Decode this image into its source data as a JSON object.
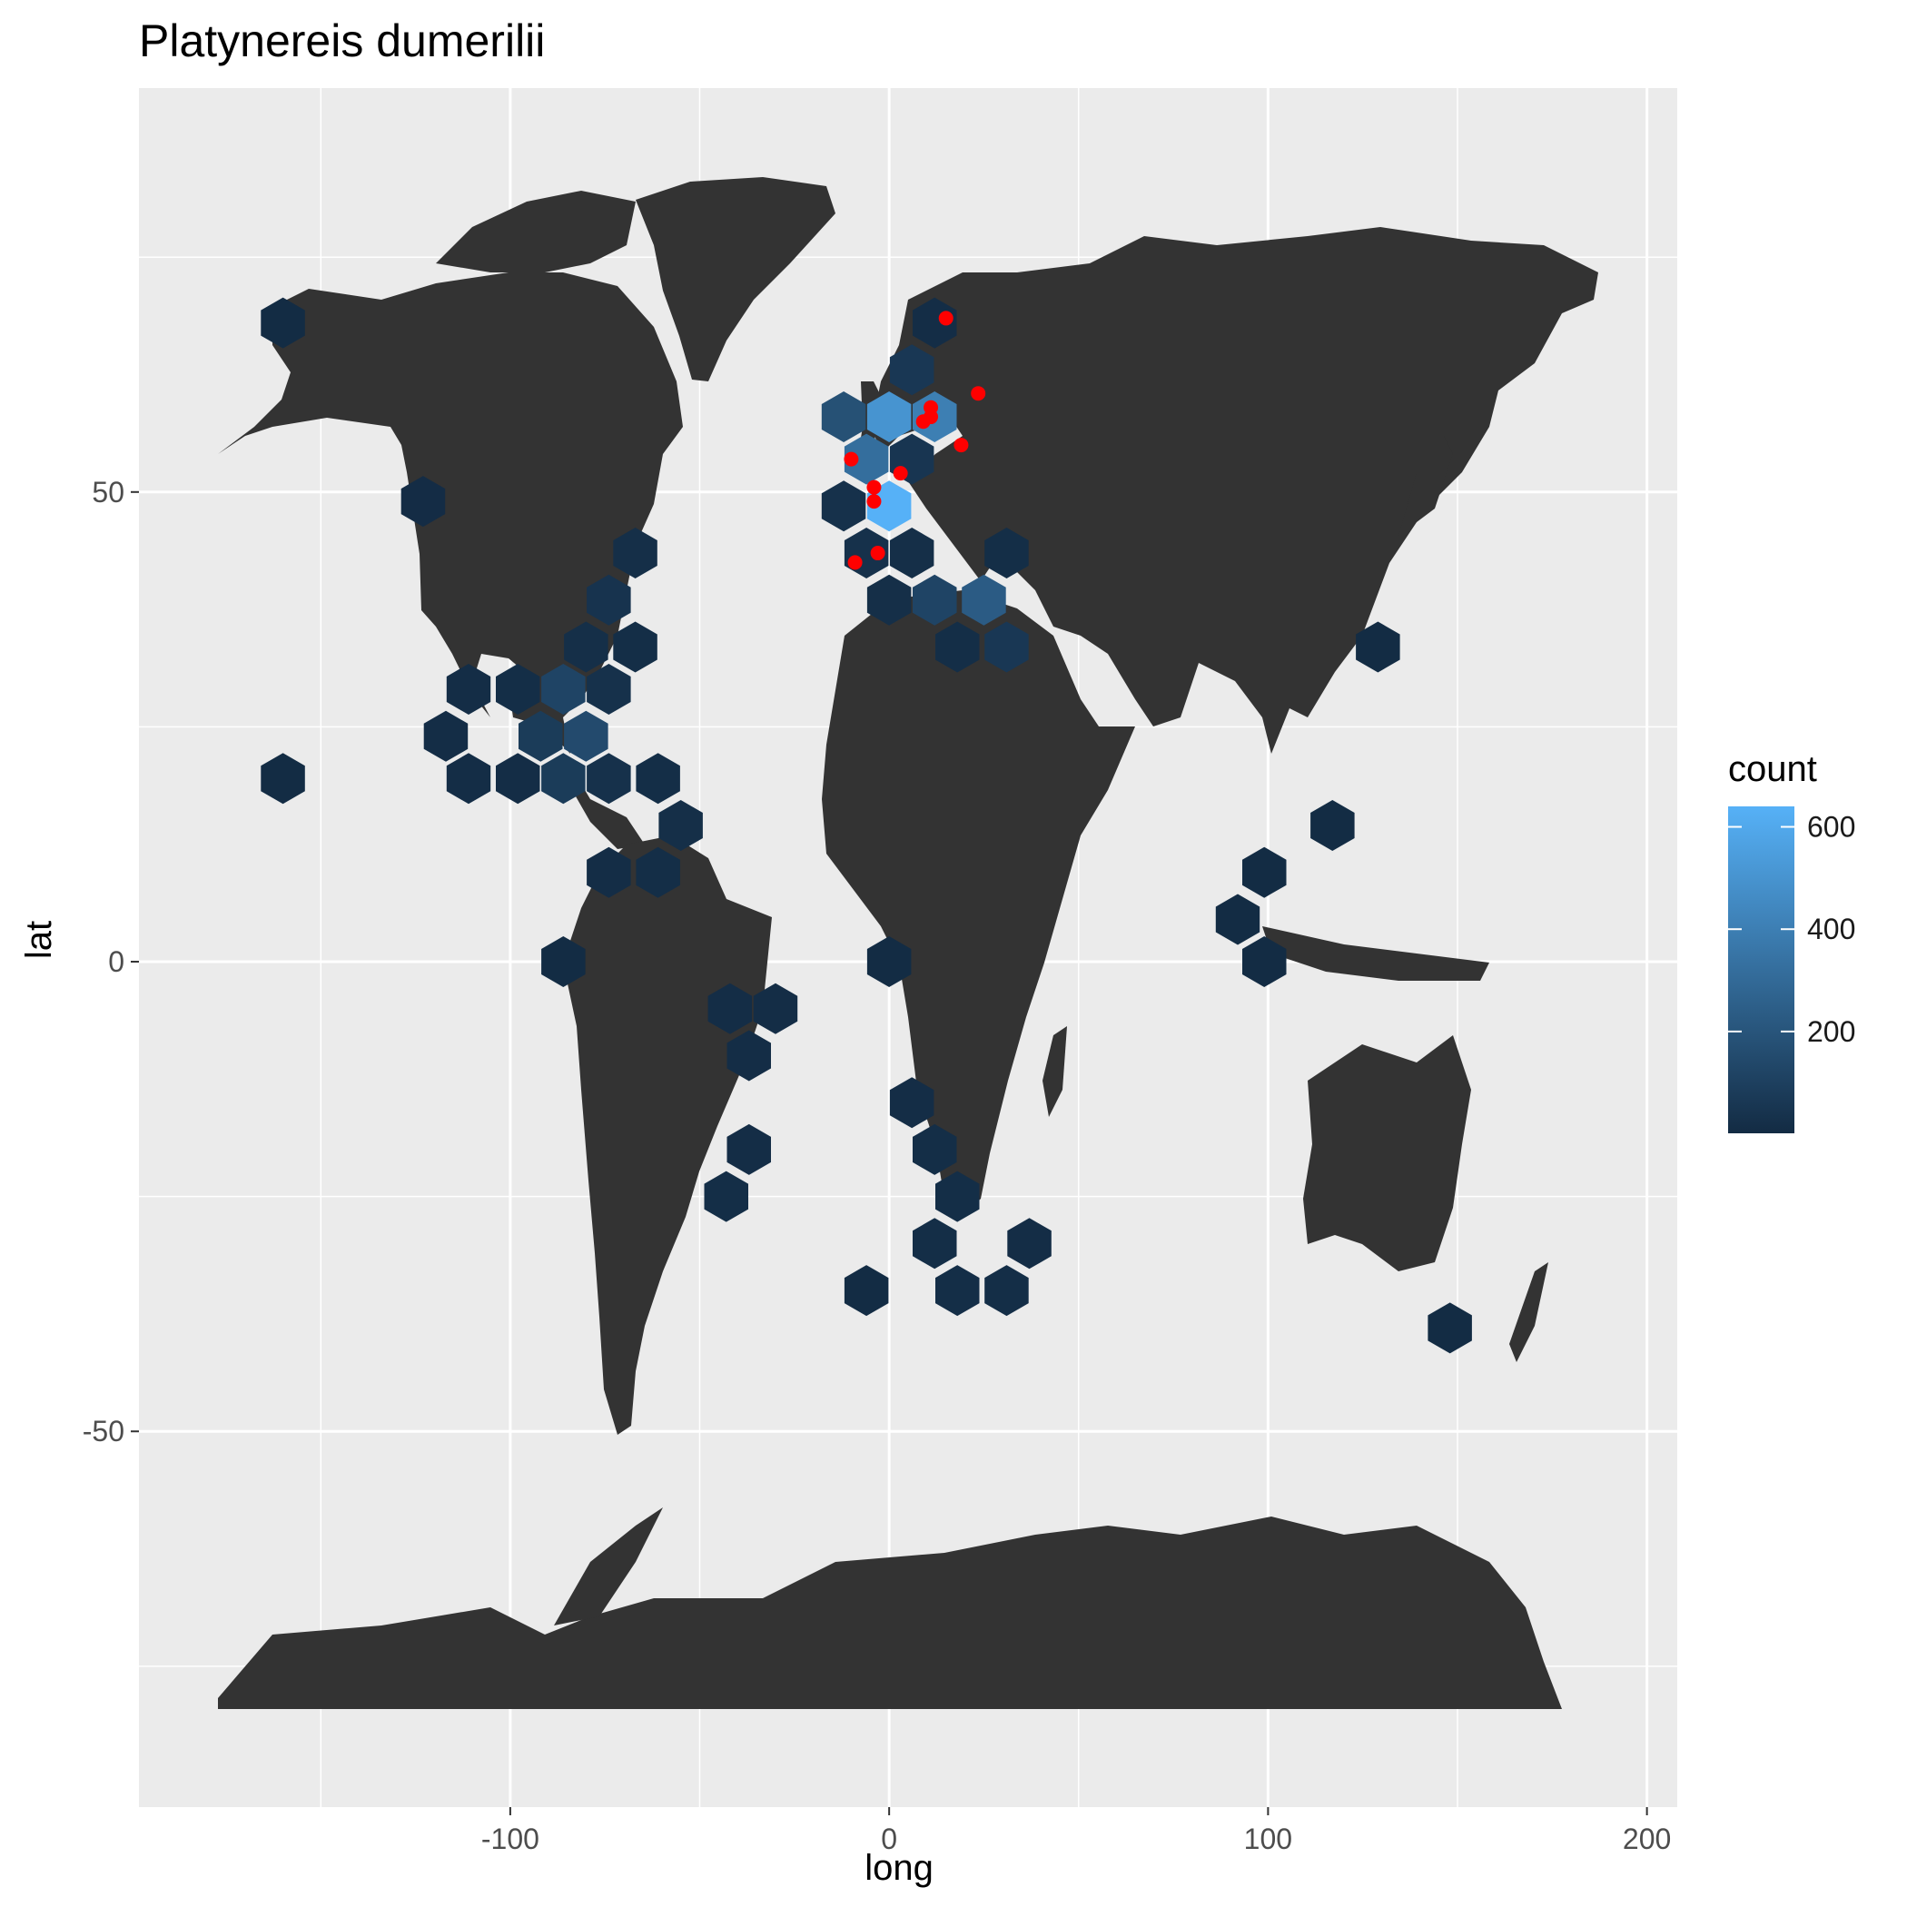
{
  "chart_data": {
    "type": "hexbin-map",
    "title": "Platynereis dumerilii",
    "xlabel": "long",
    "ylabel": "lat",
    "xlim": [
      -198,
      208
    ],
    "ylim": [
      -90,
      93
    ],
    "x_ticks": [
      -100,
      0,
      100,
      200
    ],
    "y_ticks": [
      -50,
      0,
      50
    ],
    "grid": true,
    "legend": {
      "title": "count",
      "position": "right",
      "ticks": [
        200,
        400,
        600
      ],
      "range": [
        1,
        640
      ],
      "colors": {
        "low": "#132b43",
        "high": "#56b1f7"
      }
    },
    "colors": {
      "panel": "#ebebeb",
      "grid": "#ffffff",
      "land": "#333333",
      "points": "#ff0000"
    },
    "hexbins": [
      {
        "long": -160,
        "lat": 68,
        "count": 5
      },
      {
        "long": -123,
        "lat": 49,
        "count": 8
      },
      {
        "long": -160,
        "lat": 19.5,
        "count": 5
      },
      {
        "long": -67,
        "lat": 43.5,
        "count": 20
      },
      {
        "long": -74,
        "lat": 38.5,
        "count": 40
      },
      {
        "long": -80,
        "lat": 33.5,
        "count": 20
      },
      {
        "long": -67,
        "lat": 33.5,
        "count": 15
      },
      {
        "long": -111,
        "lat": 29,
        "count": 10
      },
      {
        "long": -98,
        "lat": 29,
        "count": 15
      },
      {
        "long": -86,
        "lat": 29,
        "count": 120
      },
      {
        "long": -74,
        "lat": 29,
        "count": 30
      },
      {
        "long": -117,
        "lat": 24,
        "count": 10
      },
      {
        "long": -92,
        "lat": 24,
        "count": 80
      },
      {
        "long": -80,
        "lat": 24,
        "count": 150
      },
      {
        "long": -111,
        "lat": 19.5,
        "count": 10
      },
      {
        "long": -98,
        "lat": 19.5,
        "count": 10
      },
      {
        "long": -86,
        "lat": 19.5,
        "count": 80
      },
      {
        "long": -74,
        "lat": 19.5,
        "count": 30
      },
      {
        "long": -61,
        "lat": 19.5,
        "count": 15
      },
      {
        "long": -55,
        "lat": 14.5,
        "count": 20
      },
      {
        "long": -74,
        "lat": 9.5,
        "count": 10
      },
      {
        "long": -61,
        "lat": 9.5,
        "count": 15
      },
      {
        "long": -86,
        "lat": 0,
        "count": 5
      },
      {
        "long": 0,
        "lat": 0,
        "count": 5
      },
      {
        "long": -42,
        "lat": -5,
        "count": 10
      },
      {
        "long": -30,
        "lat": -5,
        "count": 10
      },
      {
        "long": -37,
        "lat": -10,
        "count": 10
      },
      {
        "long": 6,
        "lat": -15,
        "count": 10
      },
      {
        "long": -37,
        "lat": -20,
        "count": 10
      },
      {
        "long": 12,
        "lat": -20,
        "count": 15
      },
      {
        "long": -43,
        "lat": -25,
        "count": 15
      },
      {
        "long": 18,
        "lat": -25,
        "count": 15
      },
      {
        "long": 12,
        "lat": -30,
        "count": 15
      },
      {
        "long": 37,
        "lat": -30,
        "count": 10
      },
      {
        "long": -6,
        "lat": -35,
        "count": 5
      },
      {
        "long": 18,
        "lat": -35,
        "count": 15
      },
      {
        "long": 31,
        "lat": -35,
        "count": 15
      },
      {
        "long": 12,
        "lat": 68,
        "count": 10
      },
      {
        "long": 6,
        "lat": 63,
        "count": 60
      },
      {
        "long": -12,
        "lat": 58,
        "count": 180
      },
      {
        "long": 0,
        "lat": 58,
        "count": 500
      },
      {
        "long": 12,
        "lat": 58,
        "count": 400
      },
      {
        "long": -6,
        "lat": 53.5,
        "count": 320
      },
      {
        "long": 6,
        "lat": 53.5,
        "count": 50
      },
      {
        "long": -12,
        "lat": 48.5,
        "count": 30
      },
      {
        "long": 0,
        "lat": 48.5,
        "count": 640
      },
      {
        "long": -6,
        "lat": 43.5,
        "count": 30
      },
      {
        "long": 6,
        "lat": 43.5,
        "count": 20
      },
      {
        "long": 31,
        "lat": 43.5,
        "count": 15
      },
      {
        "long": 0,
        "lat": 38.5,
        "count": 20
      },
      {
        "long": 12,
        "lat": 38.5,
        "count": 120
      },
      {
        "long": 25,
        "lat": 38.5,
        "count": 230
      },
      {
        "long": 18,
        "lat": 33.5,
        "count": 15
      },
      {
        "long": 31,
        "lat": 33.5,
        "count": 60
      },
      {
        "long": 129,
        "lat": 33.5,
        "count": 5
      },
      {
        "long": 117,
        "lat": 14.5,
        "count": 5
      },
      {
        "long": 99,
        "lat": 9.5,
        "count": 5
      },
      {
        "long": 92,
        "lat": 4.5,
        "count": 5
      },
      {
        "long": 99,
        "lat": 0,
        "count": 5
      },
      {
        "long": 148,
        "lat": -39,
        "count": 5
      }
    ],
    "points": [
      {
        "long": 15,
        "lat": 68.5
      },
      {
        "long": 23.5,
        "lat": 60.5
      },
      {
        "long": 11,
        "lat": 59
      },
      {
        "long": 11,
        "lat": 58
      },
      {
        "long": 9,
        "lat": 57.5
      },
      {
        "long": 19,
        "lat": 55
      },
      {
        "long": -10,
        "lat": 53.5
      },
      {
        "long": 3,
        "lat": 52
      },
      {
        "long": -4,
        "lat": 50.5
      },
      {
        "long": -4,
        "lat": 49
      },
      {
        "long": -3,
        "lat": 43.5
      },
      {
        "long": -9,
        "lat": 42.5
      }
    ]
  }
}
